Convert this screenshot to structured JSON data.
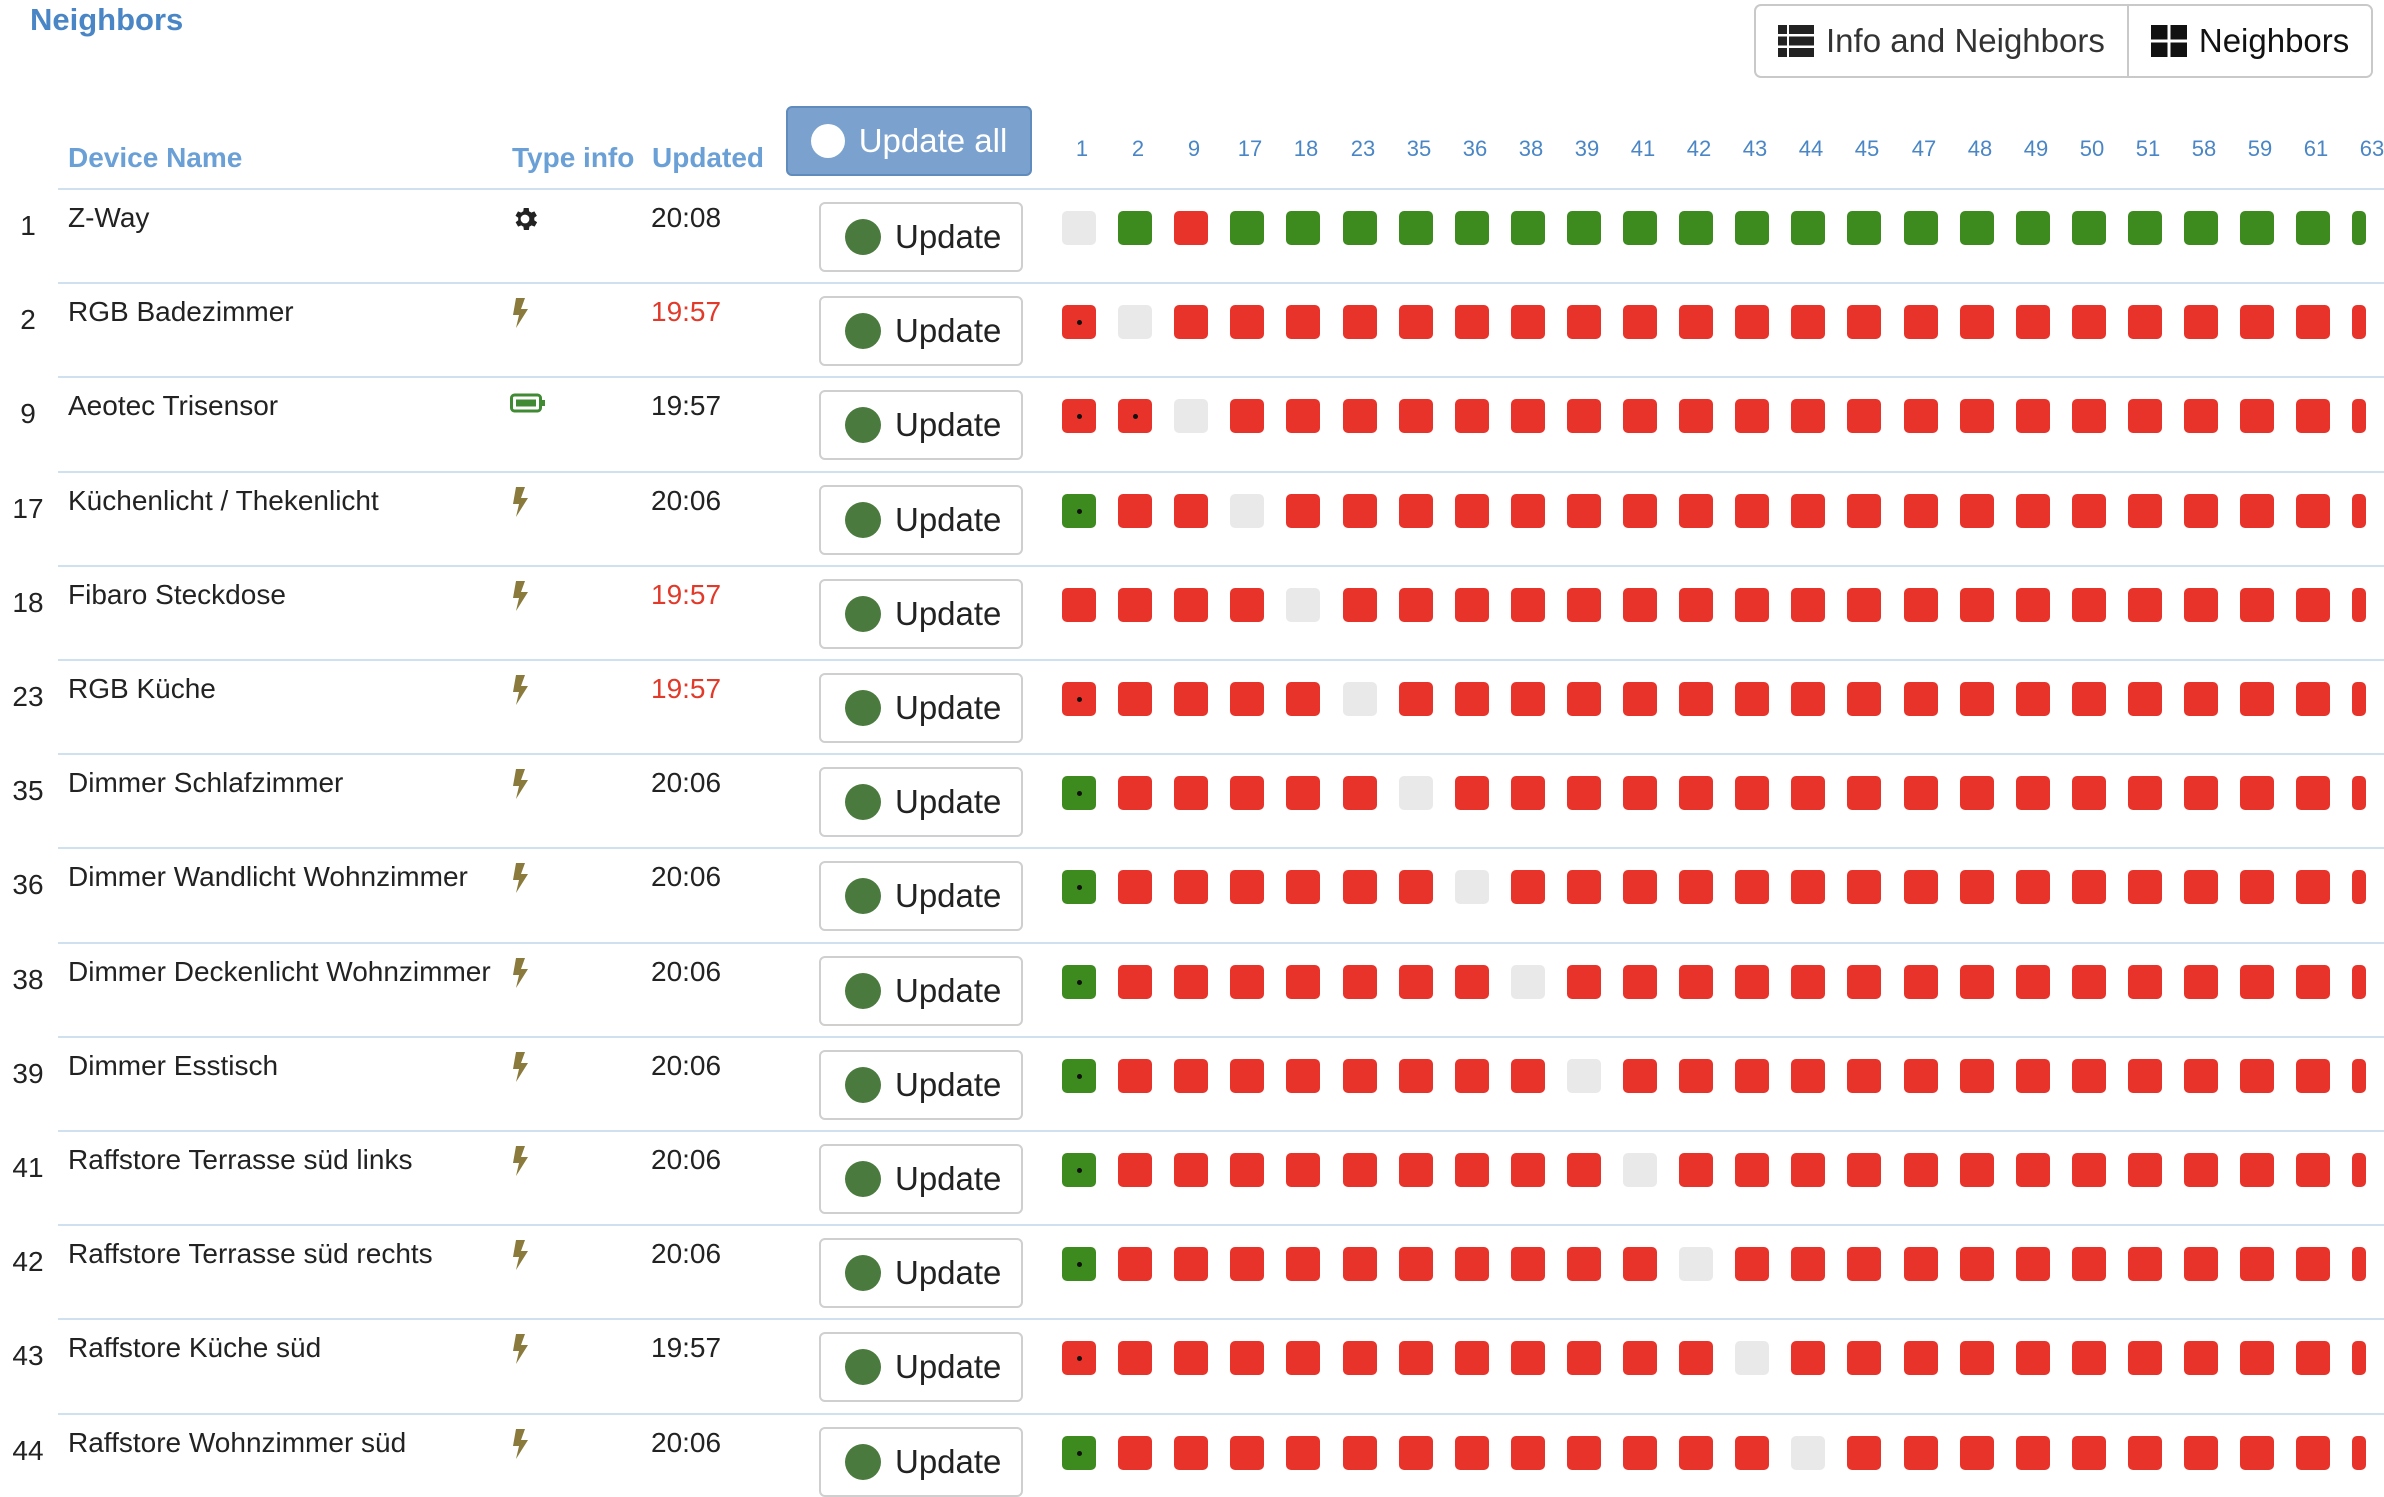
{
  "page": {
    "title": "Neighbors"
  },
  "view_toggle": {
    "info_label": "Info and Neighbors",
    "neighbors_label": "Neighbors",
    "active": "neighbors"
  },
  "table": {
    "headers": {
      "device_name": "Device Name",
      "type_info": "Type info",
      "updated": "Updated"
    },
    "update_all_label": "Update all",
    "update_label": "Update",
    "neighbor_columns": [
      "1",
      "2",
      "9",
      "17",
      "18",
      "23",
      "35",
      "36",
      "38",
      "39",
      "41",
      "42",
      "43",
      "44",
      "45",
      "47",
      "48",
      "49",
      "50",
      "51",
      "58",
      "59",
      "61",
      "63"
    ],
    "last_column_partial_text": "63",
    "colors": {
      "reachable": "#3d8a1f",
      "unreachable": "#e8332a",
      "self": "#e9e9e9",
      "stale_time": "#e23a2a"
    },
    "rows": [
      {
        "id": "1",
        "name": "Z-Way",
        "type_icon": "gear-icon",
        "updated": "20:08",
        "stale": false,
        "cells": "SGRGGGGGGGGGGGGGGGGGGGGG",
        "dots": []
      },
      {
        "id": "2",
        "name": "RGB Badezimmer",
        "type_icon": "bolt-icon",
        "updated": "19:57",
        "stale": true,
        "cells": "RSRRRRRRRRRRRRRRRRRRRRRR",
        "dots": [
          0
        ]
      },
      {
        "id": "9",
        "name": "Aeotec Trisensor",
        "type_icon": "battery-icon",
        "updated": "19:57",
        "stale": false,
        "cells": "RRSRRRRRRRRRRRRRRRRRRRRR",
        "dots": [
          0,
          1
        ]
      },
      {
        "id": "17",
        "name": "Küchenlicht / Thekenlicht",
        "type_icon": "bolt-icon",
        "updated": "20:06",
        "stale": false,
        "cells": "GRRSRRRRRRRRRRRRRRRRRRRR",
        "dots": [
          0
        ]
      },
      {
        "id": "18",
        "name": "Fibaro Steckdose",
        "type_icon": "bolt-icon",
        "updated": "19:57",
        "stale": true,
        "cells": "RRRRSRRRRRRRRRRRRRRRRRRR",
        "dots": []
      },
      {
        "id": "23",
        "name": "RGB Küche",
        "type_icon": "bolt-icon",
        "updated": "19:57",
        "stale": true,
        "cells": "RRRRRSRRRRRRRRRRRRRRRRRR",
        "dots": [
          0
        ]
      },
      {
        "id": "35",
        "name": "Dimmer Schlafzimmer",
        "type_icon": "bolt-icon",
        "updated": "20:06",
        "stale": false,
        "cells": "GRRRRRSRRRRRRRRRRRRRRRRR",
        "dots": [
          0
        ]
      },
      {
        "id": "36",
        "name": "Dimmer Wandlicht Wohnzimmer",
        "type_icon": "bolt-icon",
        "updated": "20:06",
        "stale": false,
        "cells": "GRRRRRRSRRRRRRRRRRRRRRRR",
        "dots": [
          0
        ]
      },
      {
        "id": "38",
        "name": "Dimmer Deckenlicht Wohnzimmer",
        "type_icon": "bolt-icon",
        "updated": "20:06",
        "stale": false,
        "cells": "GRRRRRRRSRRRRRRRRRRRRRRR",
        "dots": [
          0
        ]
      },
      {
        "id": "39",
        "name": "Dimmer Esstisch",
        "type_icon": "bolt-icon",
        "updated": "20:06",
        "stale": false,
        "cells": "GRRRRRRRRSRRRRRRRRRRRRRR",
        "dots": [
          0
        ]
      },
      {
        "id": "41",
        "name": "Raffstore Terrasse süd links",
        "type_icon": "bolt-icon",
        "updated": "20:06",
        "stale": false,
        "cells": "GRRRRRRRRRSRRRRRRRRRRRRR",
        "dots": [
          0
        ]
      },
      {
        "id": "42",
        "name": "Raffstore Terrasse süd rechts",
        "type_icon": "bolt-icon",
        "updated": "20:06",
        "stale": false,
        "cells": "GRRRRRRRRRRSRRRRRRRRRRRR",
        "dots": [
          0
        ]
      },
      {
        "id": "43",
        "name": "Raffstore Küche süd",
        "type_icon": "bolt-icon",
        "updated": "19:57",
        "stale": false,
        "cells": "RRRRRRRRRRRRSRRRRRRRRRRR",
        "dots": [
          0
        ]
      },
      {
        "id": "44",
        "name": "Raffstore Wohnzimmer süd",
        "type_icon": "bolt-icon",
        "updated": "20:06",
        "stale": false,
        "cells": "GRRRRRRRRRRRRSRRRRRRRRRR",
        "dots": [
          0
        ]
      }
    ]
  }
}
